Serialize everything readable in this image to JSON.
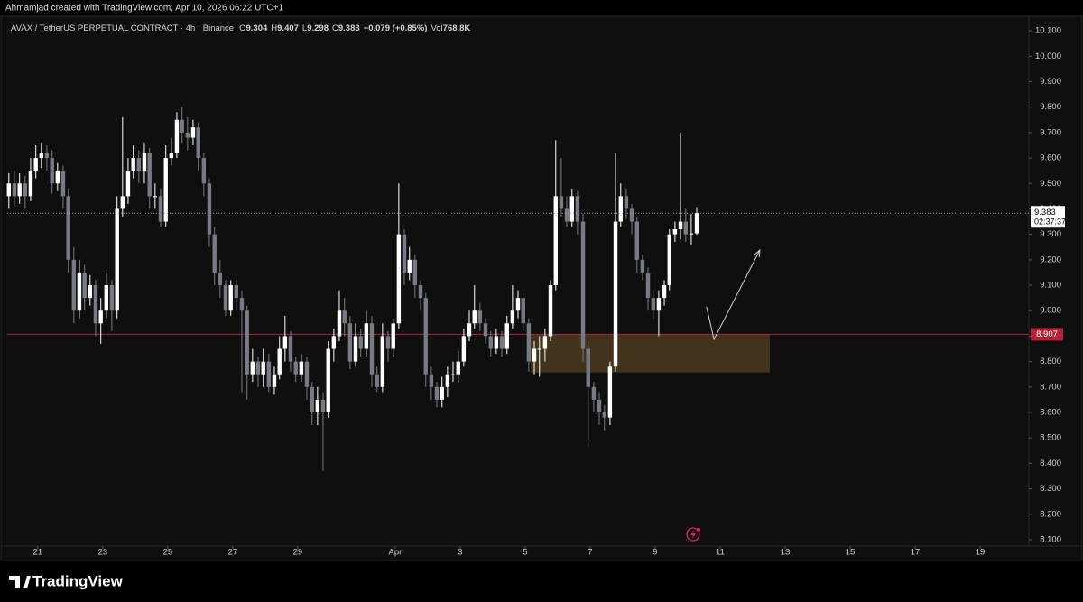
{
  "header": {
    "title": "Ahmamjad created with TradingView.com, Apr 10, 2026 06:22 UTC+1"
  },
  "footer": {
    "brand": "TradingView"
  },
  "chart_data": {
    "type": "candlestick",
    "symbol_label": "AVAX / TetherUS PERPETUAL CONTRACT · 4h · Binance",
    "legend_labels": {
      "open": "O",
      "high": "H",
      "low": "L",
      "close": "C",
      "volume": "Vol"
    },
    "change_label": "+0.079 (+0.85%)",
    "volume_label": "768.8K",
    "countdown": "02:37:37",
    "up_color": "#ffffff",
    "down_color": "#787b86",
    "x": [
      20.11,
      20.28,
      20.44,
      20.61,
      20.78,
      20.94,
      21.11,
      21.28,
      21.44,
      21.61,
      21.78,
      21.94,
      22.11,
      22.28,
      22.44,
      22.61,
      22.78,
      22.94,
      23.11,
      23.28,
      23.44,
      23.61,
      23.78,
      23.94,
      24.11,
      24.28,
      24.44,
      24.61,
      24.78,
      24.94,
      25.11,
      25.28,
      25.44,
      25.61,
      25.78,
      25.94,
      26.11,
      26.28,
      26.44,
      26.61,
      26.78,
      26.94,
      27.11,
      27.28,
      27.44,
      27.61,
      27.78,
      27.94,
      28.11,
      28.28,
      28.44,
      28.61,
      28.78,
      28.94,
      29.11,
      29.28,
      29.44,
      29.61,
      29.78,
      29.94,
      30.11,
      30.28,
      30.44,
      30.61,
      30.78,
      30.94,
      31.11,
      31.28,
      31.44,
      31.61,
      31.78,
      31.94,
      32.11,
      32.28,
      32.44,
      32.61,
      32.78,
      32.94,
      33.11,
      33.28,
      33.44,
      33.61,
      33.78,
      33.94,
      34.11,
      34.28,
      34.44,
      34.61,
      34.78,
      34.94,
      35.11,
      35.28,
      35.44,
      35.61,
      35.78,
      35.94,
      36.11,
      36.28,
      36.44,
      36.61,
      36.78,
      36.94,
      37.11,
      37.28,
      37.44,
      37.61,
      37.78,
      37.94,
      38.11,
      38.28,
      38.44,
      38.61,
      38.78,
      38.94,
      39.11,
      39.28,
      39.44,
      39.61,
      39.78,
      39.94,
      40.11,
      40.28,
      40.44,
      40.61,
      40.78,
      40.94,
      41.11,
      41.28
    ],
    "open": [
      9.45,
      9.5,
      9.45,
      9.5,
      9.45,
      9.55,
      9.6,
      9.62,
      9.6,
      9.5,
      9.55,
      9.45,
      9.2,
      9.0,
      9.15,
      9.05,
      9.1,
      8.95,
      9.0,
      9.1,
      9.0,
      9.4,
      9.45,
      9.55,
      9.6,
      9.55,
      9.62,
      9.45,
      9.45,
      9.35,
      9.6,
      9.62,
      9.75,
      9.7,
      9.68,
      9.72,
      9.6,
      9.5,
      9.3,
      9.15,
      9.1,
      9.0,
      9.1,
      9.05,
      9.0,
      8.75,
      8.8,
      8.75,
      8.8,
      8.7,
      8.75,
      8.85,
      8.9,
      8.8,
      8.75,
      8.8,
      8.7,
      8.6,
      8.65,
      8.6,
      8.85,
      8.9,
      9.0,
      8.95,
      8.8,
      8.9,
      8.85,
      8.95,
      8.75,
      8.7,
      8.9,
      8.85,
      8.95,
      9.3,
      9.15,
      9.2,
      9.1,
      9.05,
      8.75,
      8.7,
      8.65,
      8.7,
      8.75,
      8.75,
      8.8,
      8.9,
      8.95,
      9.0,
      8.95,
      8.9,
      8.85,
      8.9,
      8.85,
      8.95,
      9.0,
      9.05,
      8.95,
      8.8,
      8.85,
      8.85,
      8.9,
      9.1,
      9.45,
      9.4,
      9.35,
      9.45,
      9.35,
      8.85,
      8.7,
      8.65,
      8.6,
      8.58,
      8.78,
      9.35,
      9.45,
      9.4,
      9.35,
      9.2,
      9.15,
      9.05,
      9.0,
      9.05,
      9.1,
      9.3,
      9.32,
      9.35,
      9.3,
      9.304
    ],
    "high": [
      9.54,
      9.55,
      9.54,
      9.53,
      9.6,
      9.65,
      9.66,
      9.65,
      9.63,
      9.58,
      9.57,
      9.48,
      9.25,
      9.2,
      9.18,
      9.14,
      9.12,
      9.05,
      9.15,
      9.12,
      9.45,
      9.76,
      9.6,
      9.65,
      9.63,
      9.66,
      9.64,
      9.5,
      9.48,
      9.65,
      9.68,
      9.78,
      9.8,
      9.76,
      9.75,
      9.74,
      9.62,
      9.52,
      9.33,
      9.2,
      9.12,
      9.12,
      9.12,
      9.08,
      9.02,
      8.85,
      8.82,
      8.85,
      8.83,
      8.78,
      8.9,
      8.98,
      8.92,
      8.82,
      8.83,
      8.82,
      8.72,
      8.7,
      8.68,
      8.88,
      8.93,
      9.08,
      9.05,
      8.98,
      8.95,
      8.93,
      9.0,
      8.98,
      8.78,
      8.95,
      8.92,
      8.97,
      9.5,
      9.32,
      9.25,
      9.22,
      9.12,
      9.07,
      8.78,
      8.72,
      8.74,
      8.78,
      8.8,
      8.84,
      8.93,
      9.0,
      9.1,
      9.03,
      8.97,
      8.92,
      8.93,
      8.92,
      8.98,
      9.1,
      9.08,
      9.07,
      8.97,
      8.88,
      8.9,
      8.93,
      9.12,
      9.67,
      9.6,
      9.45,
      9.48,
      9.47,
      9.38,
      8.88,
      8.72,
      8.68,
      8.63,
      8.8,
      9.62,
      9.5,
      9.48,
      9.42,
      9.37,
      9.22,
      9.17,
      9.08,
      9.08,
      9.12,
      9.32,
      9.35,
      9.7,
      9.4,
      9.38,
      9.407
    ],
    "low": [
      9.4,
      9.41,
      9.42,
      9.4,
      9.43,
      9.52,
      9.56,
      9.55,
      9.46,
      9.47,
      9.4,
      9.15,
      8.95,
      8.97,
      9.0,
      9.02,
      8.9,
      8.87,
      8.97,
      8.92,
      8.97,
      9.37,
      9.42,
      9.52,
      9.5,
      9.5,
      9.4,
      9.4,
      9.33,
      9.33,
      9.57,
      9.6,
      9.66,
      9.63,
      9.65,
      9.55,
      9.45,
      9.25,
      9.1,
      9.05,
      8.98,
      8.98,
      9.0,
      8.68,
      8.65,
      8.72,
      8.7,
      8.7,
      8.68,
      8.67,
      8.73,
      8.8,
      8.76,
      8.72,
      8.72,
      8.65,
      8.55,
      8.55,
      8.37,
      8.58,
      8.8,
      8.88,
      8.9,
      8.77,
      8.78,
      8.82,
      8.82,
      8.7,
      8.68,
      8.68,
      8.8,
      8.82,
      8.93,
      9.1,
      9.12,
      9.05,
      9.0,
      8.7,
      8.65,
      8.62,
      8.62,
      8.66,
      8.72,
      8.72,
      8.78,
      8.88,
      8.93,
      8.92,
      8.87,
      8.82,
      8.83,
      8.82,
      8.83,
      8.93,
      8.97,
      8.92,
      8.76,
      8.75,
      8.74,
      8.8,
      8.88,
      9.08,
      9.37,
      9.33,
      9.33,
      9.3,
      8.8,
      8.47,
      8.6,
      8.55,
      8.53,
      8.55,
      8.76,
      9.33,
      9.36,
      9.3,
      9.15,
      9.12,
      9.0,
      8.97,
      8.9,
      9.02,
      9.08,
      9.27,
      9.28,
      9.27,
      9.26,
      9.298
    ],
    "close": [
      9.5,
      9.45,
      9.5,
      9.45,
      9.55,
      9.6,
      9.62,
      9.6,
      9.5,
      9.55,
      9.45,
      9.2,
      9.0,
      9.15,
      9.05,
      9.1,
      8.95,
      9.0,
      9.1,
      9.0,
      9.4,
      9.45,
      9.55,
      9.6,
      9.55,
      9.62,
      9.45,
      9.45,
      9.35,
      9.6,
      9.62,
      9.75,
      9.7,
      9.68,
      9.72,
      9.6,
      9.5,
      9.3,
      9.15,
      9.1,
      9.0,
      9.1,
      9.05,
      9.0,
      8.75,
      8.8,
      8.75,
      8.8,
      8.7,
      8.75,
      8.85,
      8.9,
      8.8,
      8.75,
      8.8,
      8.7,
      8.6,
      8.65,
      8.6,
      8.85,
      8.9,
      9.0,
      8.95,
      8.8,
      8.9,
      8.85,
      8.95,
      8.75,
      8.7,
      8.9,
      8.85,
      8.95,
      9.3,
      9.15,
      9.2,
      9.1,
      9.05,
      8.75,
      8.7,
      8.65,
      8.7,
      8.75,
      8.75,
      8.8,
      8.9,
      8.95,
      9.0,
      8.95,
      8.9,
      8.85,
      8.9,
      8.85,
      8.95,
      9.0,
      9.05,
      8.95,
      8.8,
      8.85,
      8.85,
      8.9,
      9.1,
      9.45,
      9.4,
      9.35,
      9.45,
      9.35,
      8.85,
      8.7,
      8.65,
      8.6,
      8.58,
      8.78,
      9.35,
      9.45,
      9.4,
      9.35,
      9.2,
      9.15,
      9.05,
      9.0,
      9.05,
      9.1,
      9.3,
      9.32,
      9.35,
      9.3,
      9.304,
      9.383
    ],
    "xlim": [
      20.06,
      51.5
    ],
    "xticks": [
      21,
      {
        "value": 23,
        "label": "23"
      },
      {
        "value": 25,
        "label": "25"
      },
      {
        "value": 27,
        "label": "27"
      },
      {
        "value": 29,
        "label": "29"
      },
      {
        "value": 32,
        "label": "Apr"
      },
      {
        "value": 34,
        "label": "3"
      },
      {
        "value": 36,
        "label": "5"
      },
      {
        "value": 38,
        "label": "7"
      },
      {
        "value": 40,
        "label": "9"
      },
      {
        "value": 42,
        "label": "11"
      },
      {
        "value": 44,
        "label": "13"
      },
      {
        "value": 46,
        "label": "15"
      },
      {
        "value": 48,
        "label": "17"
      },
      {
        "value": 50,
        "label": "19"
      }
    ],
    "ylim": [
      8.075,
      10.15
    ],
    "yticks": [
      {
        "value": 8.1,
        "label": "8.100"
      },
      {
        "value": 8.2,
        "label": "8.200"
      },
      {
        "value": 8.3,
        "label": "8.300"
      },
      {
        "value": 8.4,
        "label": "8.400"
      },
      {
        "value": 8.5,
        "label": "8.500"
      },
      {
        "value": 8.6,
        "label": "8.600"
      },
      {
        "value": 8.7,
        "label": "8.700"
      },
      {
        "value": 8.8,
        "label": "8.800"
      },
      {
        "value": 8.9,
        "label": "8.900"
      },
      {
        "value": 9.0,
        "label": "9.000"
      },
      {
        "value": 9.1,
        "label": "9.100"
      },
      {
        "value": 9.2,
        "label": "9.200"
      },
      {
        "value": 9.3,
        "label": "9.300"
      },
      {
        "value": 9.4,
        "label": "9.400"
      },
      {
        "value": 9.5,
        "label": "9.500"
      },
      {
        "value": 9.6,
        "label": "9.600"
      },
      {
        "value": 9.7,
        "label": "9.700"
      },
      {
        "value": 9.8,
        "label": "9.800"
      },
      {
        "value": 9.9,
        "label": "9.900"
      },
      {
        "value": 10.0,
        "label": "10.000"
      },
      {
        "value": 10.1,
        "label": "10.100"
      }
    ],
    "grid": false,
    "horizontal_line": {
      "value": 8.907,
      "color": "#b2233a"
    },
    "zone": {
      "x": [
        36.17,
        43.53
      ],
      "y": [
        8.757,
        8.907
      ],
      "color": "#4a3a1f"
    },
    "drawing": {
      "x": [
        41.58,
        41.81,
        43.22
      ],
      "y": [
        9.015,
        8.887,
        9.238
      ],
      "color": "#d1d4dc"
    }
  }
}
